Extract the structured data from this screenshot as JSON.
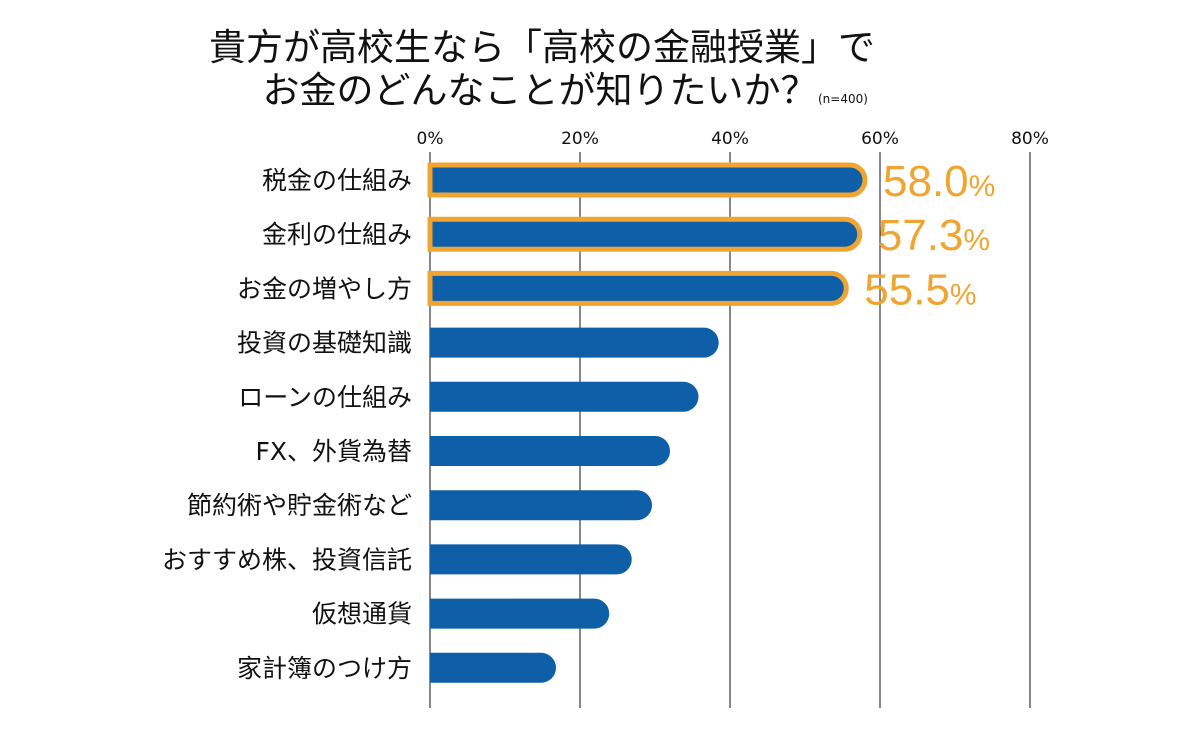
{
  "chart_data": {
    "type": "bar",
    "orientation": "horizontal",
    "title_lines": [
      "貴方が高校生なら「高校の金融授業」で",
      "お金のどんなことが知りたいか？"
    ],
    "sample_note": "(n=400)",
    "categories": [
      "税金の仕組み",
      "金利の仕組み",
      "お金の増やし方",
      "投資の基礎知識",
      "ローンの仕組み",
      "FX、外貨為替",
      "節約術や貯金術など",
      "おすすめ株、投資信託",
      "仮想通貨",
      "家計簿のつけ方"
    ],
    "values": [
      58.0,
      57.3,
      55.5,
      38.5,
      35.8,
      32.0,
      29.6,
      26.9,
      23.9,
      16.8
    ],
    "highlighted": [
      true,
      true,
      true,
      false,
      false,
      false,
      false,
      false,
      false,
      false
    ],
    "value_labels": [
      {
        "number": "58.0",
        "unit": "%"
      },
      {
        "number": "57.3",
        "unit": "%"
      },
      {
        "number": "55.5",
        "unit": "%"
      }
    ],
    "x_ticks": [
      0,
      20,
      40,
      60,
      80
    ],
    "x_tick_labels": [
      "0%",
      "20%",
      "40%",
      "60%",
      "80%"
    ],
    "xlim": [
      0,
      80
    ],
    "grid": "vertical",
    "colors": {
      "bar": "#0f5ea8",
      "highlight": "#f0a530",
      "grid": "#111111",
      "text": "#111111"
    }
  }
}
